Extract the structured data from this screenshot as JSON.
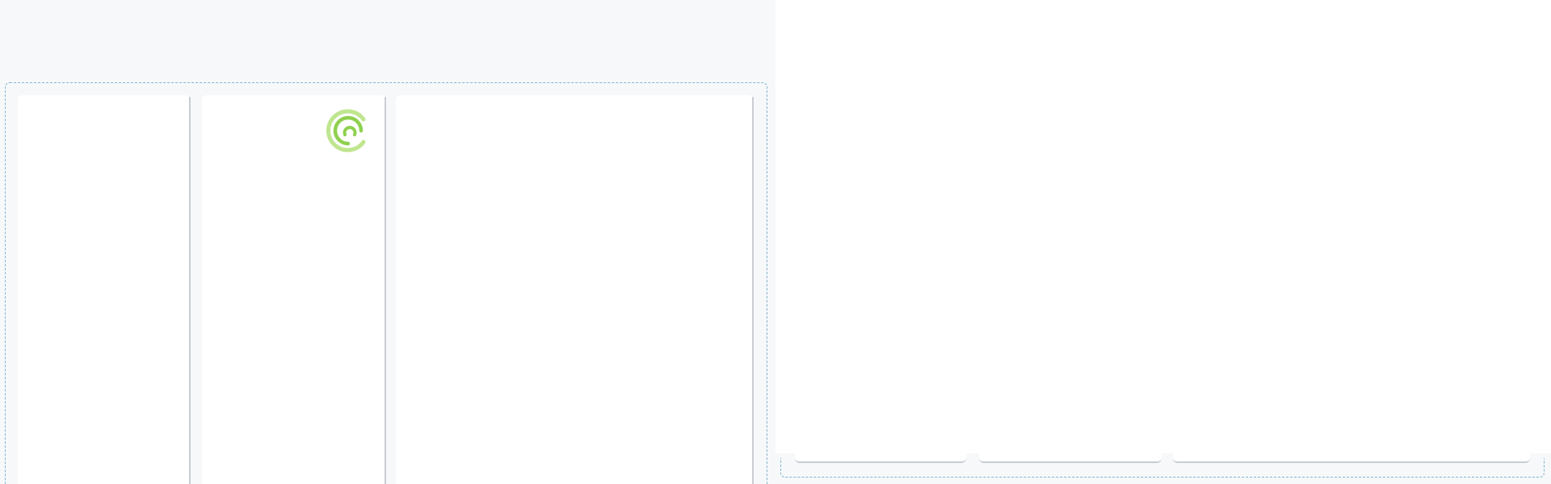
{
  "app": {
    "logo_icon": "concentric-arcs-logo-icon",
    "accent_color": "#8fd14f",
    "accent_color_light": "#bfe68f",
    "dropzone_border_color": "#7fb8cc",
    "panel_background": "#f7f8fa",
    "divider_color": "#c9cdd3"
  },
  "columns": [
    {
      "label": ""
    },
    {
      "label": ""
    },
    {
      "label": ""
    }
  ],
  "dock": {
    "items": [
      {
        "label": ""
      },
      {
        "label": ""
      },
      {
        "label": ""
      }
    ]
  }
}
